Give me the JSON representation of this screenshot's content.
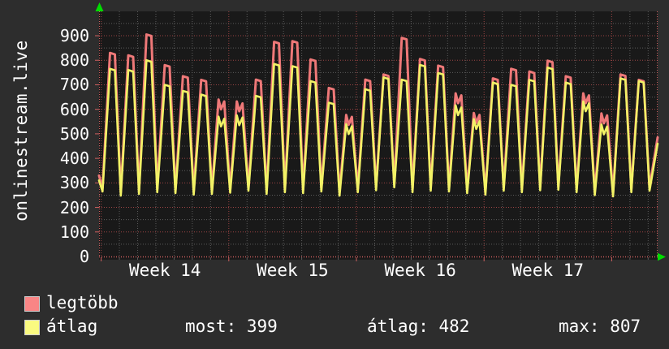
{
  "title": "onlinestream.live",
  "legend": {
    "series": [
      {
        "label": "legtöbb",
        "color": "#f98585"
      },
      {
        "label": "átlag",
        "color": "#fafa80"
      }
    ],
    "stats": [
      {
        "label": "most",
        "value": 399,
        "text": "most: 399"
      },
      {
        "label": "átlag",
        "value": 482,
        "text": "átlag: 482"
      },
      {
        "label": "max",
        "value": 807,
        "text": "max: 807"
      }
    ]
  },
  "chart_data": {
    "type": "line",
    "title": "onlinestream.live",
    "xlabel": "",
    "ylabel": "",
    "ylim": [
      0,
      1000
    ],
    "y_ticks": [
      0,
      100,
      200,
      300,
      400,
      500,
      600,
      700,
      800,
      900
    ],
    "x_week_labels": [
      "Week 14",
      "Week 15",
      "Week 16",
      "Week 17"
    ],
    "grid": {
      "minor_color": "#5c5c5c",
      "major_color": "#9c4444",
      "axis_color": "#cf5f5f",
      "style": "dotted"
    },
    "plot_bg": "#191919",
    "outer_bg": "#2d2d2d",
    "arrow_color": "#00dd00",
    "days_per_week": 7,
    "series": [
      {
        "name": "legtöbb",
        "color": "#ee7878",
        "role": "daily maximum viewers",
        "daily_peaks": [
          830,
          820,
          905,
          780,
          735,
          720,
          640,
          632,
          721,
          875,
          878,
          803,
          687,
          577,
          721,
          742,
          891,
          805,
          778,
          665,
          585,
          726,
          765,
          754,
          798,
          735,
          665,
          583,
          742,
          720
        ],
        "start_value": 330,
        "end_value": 485,
        "valley_offset": 14
      },
      {
        "name": "átlag",
        "color": "#f2f266",
        "role": "daily average viewers",
        "daily_peaks": [
          765,
          760,
          800,
          700,
          675,
          660,
          570,
          575,
          655,
          785,
          776,
          715,
          627,
          539,
          682,
          730,
          721,
          781,
          748,
          616,
          560,
          709,
          700,
          720,
          770,
          709,
          632,
          538,
          726,
          715
        ],
        "start_value": 310,
        "end_value": 460,
        "valley_offset": 0
      }
    ],
    "daily_valleys": [
      265,
      248,
      255,
      262,
      258,
      252,
      255,
      260,
      268,
      255,
      262,
      258,
      265,
      248,
      262,
      270,
      282,
      262,
      268,
      265,
      258,
      252,
      268,
      262,
      270,
      272,
      262,
      250,
      245,
      262,
      268
    ],
    "jagged_days": [
      6,
      7,
      13,
      19,
      20,
      26,
      27
    ],
    "stats": {
      "most": 399,
      "atlag": 482,
      "max": 807
    },
    "legend_position": "bottom-left"
  }
}
